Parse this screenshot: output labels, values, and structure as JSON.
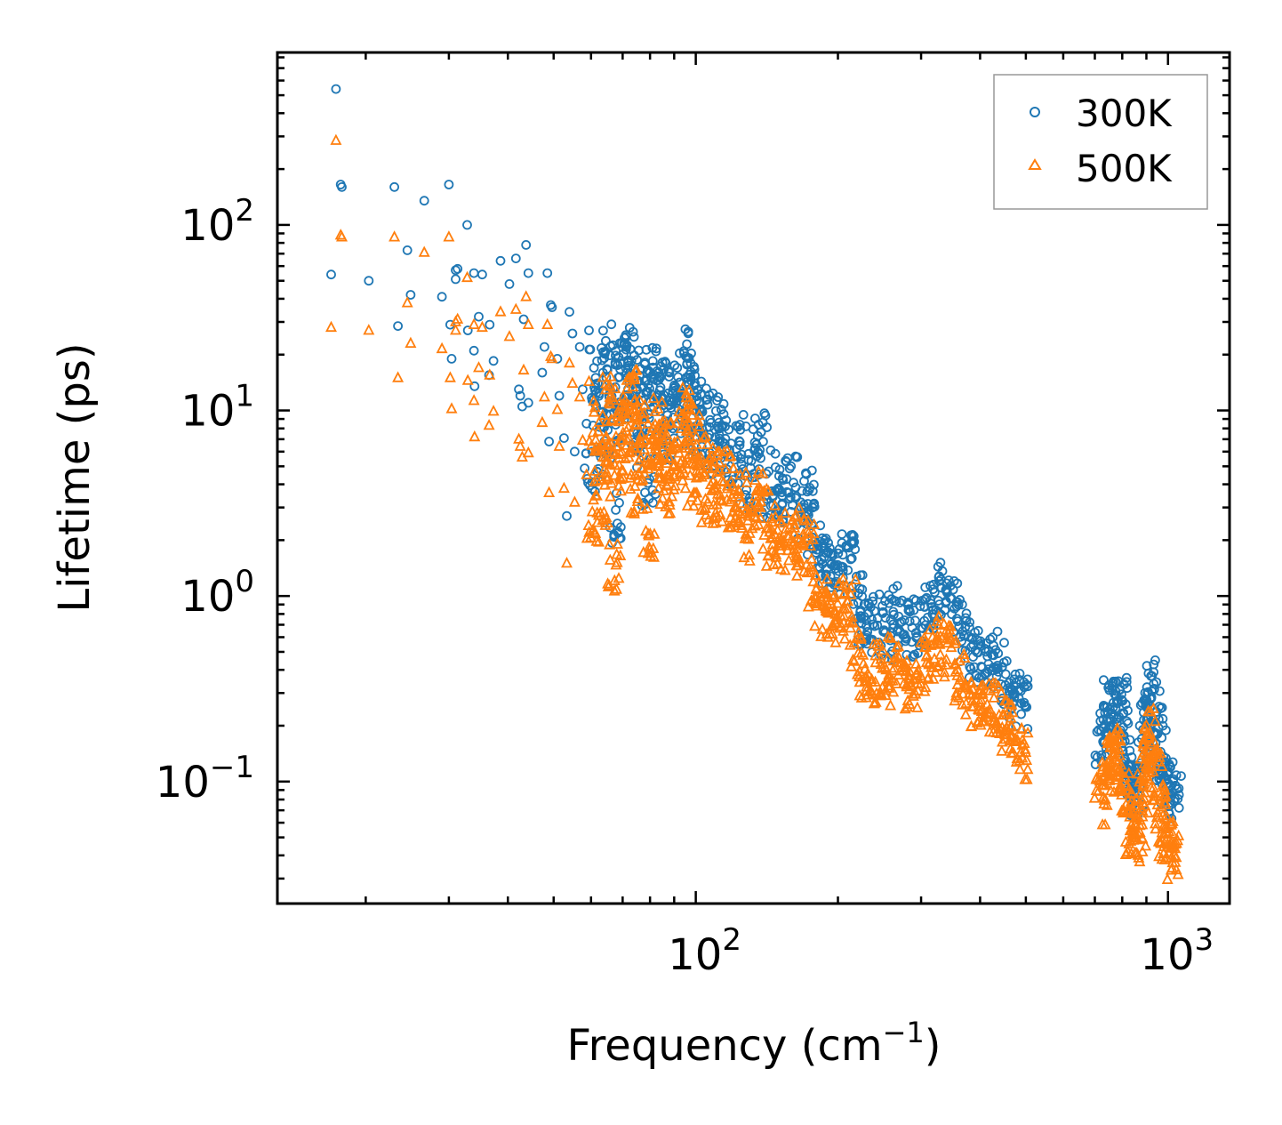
{
  "chart_data": {
    "type": "scatter",
    "xscale": "log",
    "yscale": "log",
    "xlabel": "Frequency",
    "xlabel_unit_base": "cm",
    "xlabel_unit_exp": "−1",
    "ylabel": "Lifetime (ps)",
    "xlim": [
      13,
      1350
    ],
    "ylim": [
      0.022,
      850
    ],
    "x_ticks": [
      {
        "value": 100,
        "base": "10",
        "exp": "2"
      },
      {
        "value": 1000,
        "base": "10",
        "exp": "3"
      }
    ],
    "y_ticks": [
      {
        "value": 0.1,
        "base": "10",
        "exp": "−1"
      },
      {
        "value": 1,
        "base": "10",
        "exp": "0"
      },
      {
        "value": 10,
        "base": "10",
        "exp": "1"
      },
      {
        "value": 100,
        "base": "10",
        "exp": "2"
      }
    ],
    "legend_position": "top-right",
    "series": [
      {
        "name": "300K",
        "marker": "circle",
        "color": "#1f77b4",
        "points": [
          [
            17.3,
            540
          ],
          [
            17.7,
            165
          ],
          [
            17.8,
            160
          ],
          [
            16.9,
            54
          ],
          [
            20.3,
            50
          ],
          [
            23.0,
            160
          ],
          [
            23.4,
            28.5
          ],
          [
            24.5,
            73
          ],
          [
            24.9,
            42
          ],
          [
            26.6,
            135
          ],
          [
            29.0,
            41
          ],
          [
            30.0,
            165
          ],
          [
            30.2,
            29
          ],
          [
            30.4,
            19
          ],
          [
            31.0,
            57
          ],
          [
            31.3,
            58
          ],
          [
            31.0,
            51
          ],
          [
            32.8,
            100
          ],
          [
            32.9,
            27
          ],
          [
            33.9,
            21
          ],
          [
            33.9,
            55
          ],
          [
            34.0,
            13.5
          ],
          [
            34.7,
            32
          ],
          [
            35.3,
            54
          ],
          [
            36.5,
            15.5
          ],
          [
            36.6,
            29
          ],
          [
            37.3,
            18.5
          ],
          [
            38.6,
            64
          ],
          [
            40.3,
            48
          ],
          [
            41.6,
            66
          ],
          [
            42.2,
            13
          ],
          [
            42.5,
            12
          ],
          [
            42.9,
            10.5
          ],
          [
            43.2,
            31
          ],
          [
            43.7,
            78
          ],
          [
            44.2,
            11
          ],
          [
            44.2,
            55
          ],
          [
            47.3,
            16
          ],
          [
            47.8,
            22
          ],
          [
            48.5,
            55
          ],
          [
            48.9,
            6.8
          ],
          [
            49.3,
            37
          ],
          [
            49.6,
            36
          ],
          [
            50.9,
            19
          ],
          [
            51.4,
            12
          ],
          [
            52.6,
            7.1
          ],
          [
            53.3,
            2.7
          ],
          [
            54.0,
            34
          ],
          [
            54.8,
            26
          ],
          [
            55.4,
            6.0
          ],
          [
            56.8,
            22
          ],
          [
            57.6,
            13
          ],
          [
            58.7,
            8.5
          ],
          [
            59.4,
            27
          ],
          [
            60.2,
            4.8
          ],
          [
            61.5,
            15.5
          ],
          [
            62.6,
            10.5
          ],
          [
            63.8,
            6.2
          ],
          [
            65.3,
            22
          ],
          [
            66.4,
            13
          ],
          [
            67.1,
            2.6
          ],
          [
            68.4,
            9.0
          ],
          [
            69.8,
            18
          ],
          [
            71.0,
            11.5
          ],
          [
            72.5,
            23
          ],
          [
            73.6,
            14
          ],
          [
            75.0,
            6.8
          ],
          [
            76.7,
            16
          ],
          [
            78.1,
            10.5
          ],
          [
            79.6,
            4.2
          ],
          [
            81.2,
            12
          ],
          [
            82.7,
            17
          ],
          [
            84.3,
            9.5
          ],
          [
            86.0,
            7.0
          ],
          [
            88.0,
            14
          ],
          [
            90.0,
            11
          ],
          [
            92.0,
            9.5
          ],
          [
            94.5,
            20
          ],
          [
            96.0,
            16
          ],
          [
            98.0,
            8.0
          ],
          [
            100.0,
            13
          ],
          [
            103,
            10
          ],
          [
            106,
            6.5
          ],
          [
            109,
            9
          ],
          [
            112,
            6.0
          ],
          [
            116,
            8.3
          ],
          [
            120,
            5.5
          ],
          [
            124,
            7.0
          ],
          [
            128,
            4.0
          ],
          [
            133,
            5.8
          ],
          [
            138,
            7.2
          ],
          [
            143,
            3.6
          ],
          [
            148,
            4.5
          ],
          [
            154,
            3.4
          ],
          [
            160,
            4.1
          ],
          [
            166,
            2.8
          ],
          [
            172,
            3.6
          ],
          [
            178,
            2.3
          ],
          [
            184,
            1.7
          ],
          [
            190,
            1.45
          ],
          [
            197,
            1.6
          ],
          [
            204,
            1.4
          ],
          [
            211,
            1.75
          ],
          [
            218,
            1.0
          ],
          [
            226,
            0.72
          ],
          [
            235,
            0.66
          ],
          [
            244,
            0.75
          ],
          [
            254,
            0.62
          ],
          [
            264,
            0.85
          ],
          [
            275,
            0.7
          ],
          [
            286,
            0.62
          ],
          [
            298,
            0.74
          ],
          [
            310,
            0.88
          ],
          [
            322,
            0.92
          ],
          [
            335,
            1.1
          ],
          [
            348,
            0.95
          ],
          [
            362,
            0.7
          ],
          [
            376,
            0.55
          ],
          [
            392,
            0.5
          ],
          [
            407,
            0.45
          ],
          [
            424,
            0.48
          ],
          [
            441,
            0.42
          ],
          [
            458,
            0.35
          ],
          [
            476,
            0.3
          ],
          [
            490,
            0.26
          ],
          [
            720,
            0.14
          ],
          [
            735,
            0.19
          ],
          [
            750,
            0.26
          ],
          [
            765,
            0.29
          ],
          [
            780,
            0.22
          ],
          [
            795,
            0.27
          ],
          [
            810,
            0.15
          ],
          [
            825,
            0.12
          ],
          [
            840,
            0.1
          ],
          [
            855,
            0.09
          ],
          [
            870,
            0.11
          ],
          [
            885,
            0.16
          ],
          [
            900,
            0.23
          ],
          [
            915,
            0.34
          ],
          [
            930,
            0.28
          ],
          [
            945,
            0.2
          ],
          [
            960,
            0.14
          ],
          [
            975,
            0.11
          ],
          [
            990,
            0.1
          ],
          [
            1010,
            0.09
          ],
          [
            1030,
            0.08
          ]
        ]
      },
      {
        "name": "500K",
        "marker": "triangle",
        "color": "#ff7f0e",
        "points": [
          [
            17.3,
            285
          ],
          [
            17.7,
            88
          ],
          [
            17.8,
            86
          ],
          [
            16.9,
            28
          ],
          [
            20.3,
            27
          ],
          [
            23.0,
            86
          ],
          [
            23.4,
            15
          ],
          [
            24.5,
            38
          ],
          [
            24.9,
            23
          ],
          [
            26.6,
            71
          ],
          [
            29.0,
            21.5
          ],
          [
            30.0,
            86
          ],
          [
            30.2,
            15
          ],
          [
            30.4,
            10.2
          ],
          [
            31.0,
            30
          ],
          [
            31.3,
            31
          ],
          [
            31.0,
            27
          ],
          [
            32.8,
            52
          ],
          [
            32.9,
            14.5
          ],
          [
            33.9,
            11.3
          ],
          [
            33.9,
            29
          ],
          [
            34.0,
            7.2
          ],
          [
            34.7,
            17
          ],
          [
            35.3,
            28
          ],
          [
            36.5,
            8.3
          ],
          [
            36.6,
            15.5
          ],
          [
            37.3,
            9.9
          ],
          [
            38.6,
            34
          ],
          [
            40.3,
            25
          ],
          [
            41.6,
            35
          ],
          [
            42.2,
            7.0
          ],
          [
            42.5,
            6.4
          ],
          [
            42.9,
            5.6
          ],
          [
            43.2,
            16.5
          ],
          [
            43.7,
            41
          ],
          [
            44.2,
            5.9
          ],
          [
            44.2,
            29
          ],
          [
            47.3,
            8.6
          ],
          [
            47.8,
            11.8
          ],
          [
            48.5,
            29
          ],
          [
            48.9,
            3.6
          ],
          [
            49.3,
            19.5
          ],
          [
            49.6,
            19
          ],
          [
            50.9,
            10.1
          ],
          [
            51.4,
            6.4
          ],
          [
            52.6,
            3.8
          ],
          [
            53.3,
            1.5
          ],
          [
            54.0,
            18
          ],
          [
            54.8,
            14
          ],
          [
            55.4,
            3.2
          ],
          [
            56.8,
            11.8
          ],
          [
            57.6,
            6.9
          ],
          [
            58.7,
            4.5
          ],
          [
            59.4,
            14.3
          ],
          [
            60.2,
            2.6
          ],
          [
            61.5,
            8.3
          ],
          [
            62.6,
            5.6
          ],
          [
            63.8,
            3.3
          ],
          [
            65.3,
            11.8
          ],
          [
            66.4,
            6.9
          ],
          [
            67.1,
            1.4
          ],
          [
            68.4,
            4.8
          ],
          [
            69.8,
            9.6
          ],
          [
            71.0,
            6.1
          ],
          [
            72.5,
            12.2
          ],
          [
            73.6,
            7.4
          ],
          [
            75.0,
            3.6
          ],
          [
            76.7,
            8.5
          ],
          [
            78.1,
            5.6
          ],
          [
            79.6,
            2.2
          ],
          [
            81.2,
            6.4
          ],
          [
            82.7,
            9.0
          ],
          [
            84.3,
            5.0
          ],
          [
            86.0,
            3.7
          ],
          [
            88.0,
            7.4
          ],
          [
            90.0,
            5.8
          ],
          [
            92.0,
            5.0
          ],
          [
            94.5,
            10.6
          ],
          [
            96.0,
            8.5
          ],
          [
            98.0,
            4.2
          ],
          [
            100.0,
            6.9
          ],
          [
            103,
            5.3
          ],
          [
            106,
            3.4
          ],
          [
            109,
            4.8
          ],
          [
            112,
            3.2
          ],
          [
            116,
            4.4
          ],
          [
            120,
            2.9
          ],
          [
            124,
            3.7
          ],
          [
            128,
            2.1
          ],
          [
            133,
            3.1
          ],
          [
            138,
            3.8
          ],
          [
            143,
            1.9
          ],
          [
            148,
            2.4
          ],
          [
            154,
            1.8
          ],
          [
            160,
            2.2
          ],
          [
            166,
            1.5
          ],
          [
            172,
            1.9
          ],
          [
            178,
            1.2
          ],
          [
            184,
            0.9
          ],
          [
            190,
            0.77
          ],
          [
            197,
            0.85
          ],
          [
            204,
            0.74
          ],
          [
            211,
            0.93
          ],
          [
            218,
            0.53
          ],
          [
            226,
            0.38
          ],
          [
            235,
            0.35
          ],
          [
            244,
            0.4
          ],
          [
            254,
            0.33
          ],
          [
            264,
            0.45
          ],
          [
            275,
            0.37
          ],
          [
            286,
            0.33
          ],
          [
            298,
            0.39
          ],
          [
            310,
            0.47
          ],
          [
            322,
            0.49
          ],
          [
            335,
            0.58
          ],
          [
            348,
            0.5
          ],
          [
            362,
            0.37
          ],
          [
            376,
            0.29
          ],
          [
            392,
            0.27
          ],
          [
            407,
            0.24
          ],
          [
            424,
            0.25
          ],
          [
            441,
            0.22
          ],
          [
            458,
            0.19
          ],
          [
            476,
            0.16
          ],
          [
            490,
            0.14
          ],
          [
            720,
            0.08
          ],
          [
            735,
            0.1
          ],
          [
            750,
            0.14
          ],
          [
            765,
            0.15
          ],
          [
            780,
            0.12
          ],
          [
            795,
            0.14
          ],
          [
            810,
            0.08
          ],
          [
            825,
            0.065
          ],
          [
            840,
            0.055
          ],
          [
            855,
            0.05
          ],
          [
            870,
            0.06
          ],
          [
            885,
            0.085
          ],
          [
            900,
            0.12
          ],
          [
            915,
            0.18
          ],
          [
            930,
            0.15
          ],
          [
            945,
            0.11
          ],
          [
            960,
            0.075
          ],
          [
            975,
            0.06
          ],
          [
            990,
            0.05
          ],
          [
            1010,
            0.045
          ],
          [
            1030,
            0.04
          ]
        ]
      }
    ]
  }
}
